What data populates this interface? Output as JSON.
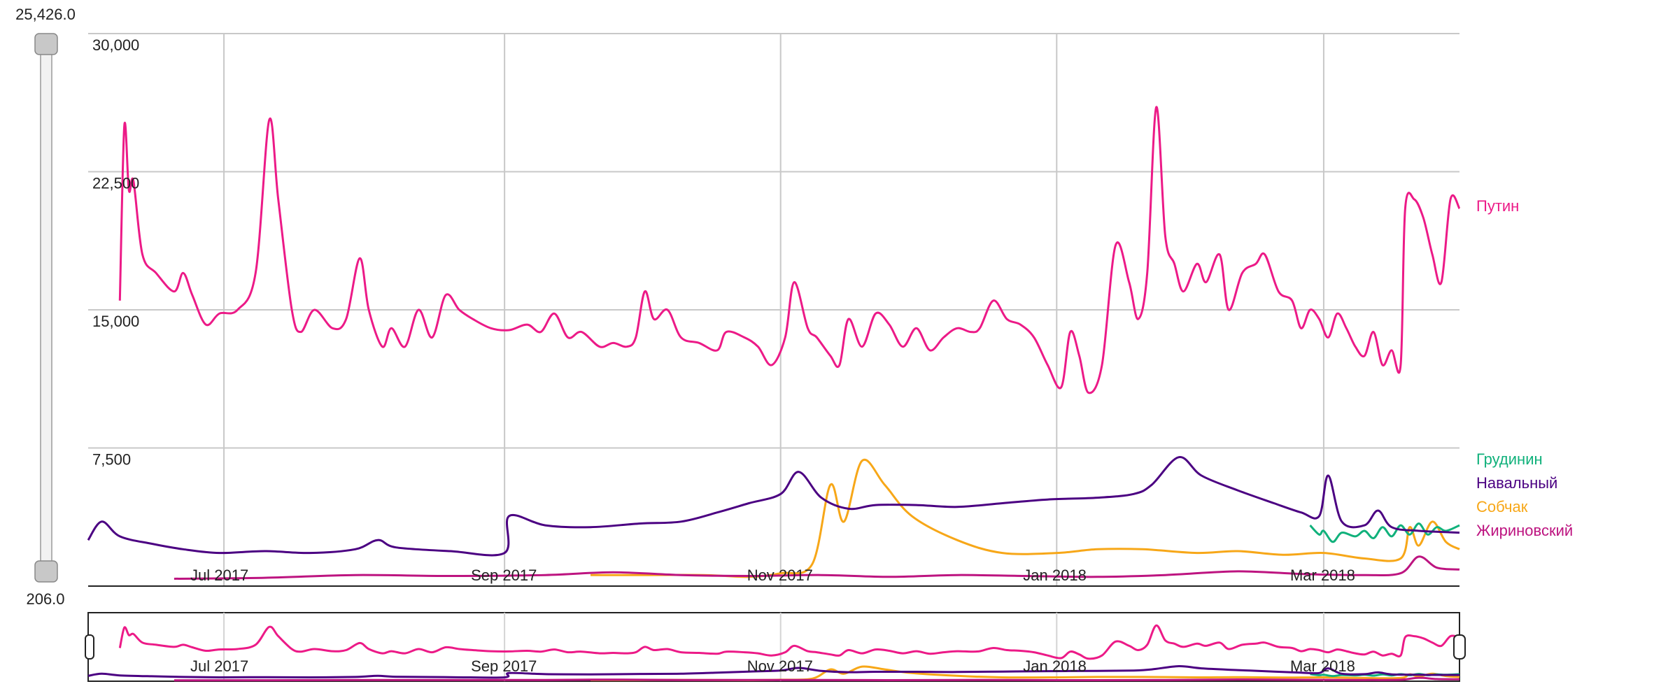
{
  "chart_data": {
    "type": "line",
    "y_range_slider": {
      "max_label": "25,426.0",
      "min_label": "206.0"
    },
    "ylim": [
      0,
      30000
    ],
    "y_ticks": [
      {
        "value": 30000,
        "label": "30,000"
      },
      {
        "value": 22500,
        "label": "22,500"
      },
      {
        "value": 15000,
        "label": "15,000"
      },
      {
        "value": 7500,
        "label": "7,500"
      }
    ],
    "x_range": [
      "2017-06-01",
      "2018-03-31"
    ],
    "x_ticks": [
      {
        "date": "2017-07-01",
        "label": "Jul 2017"
      },
      {
        "date": "2017-09-01",
        "label": "Sep 2017"
      },
      {
        "date": "2017-11-01",
        "label": "Nov 2017"
      },
      {
        "date": "2018-01-01",
        "label": "Jan 2018"
      },
      {
        "date": "2018-03-01",
        "label": "Mar 2018"
      }
    ],
    "grid": true,
    "legend_position": "right",
    "series": [
      {
        "name": "Путин",
        "color": "#ec1a87",
        "points": [
          [
            "2017-06-08",
            15500
          ],
          [
            "2017-06-09",
            25000
          ],
          [
            "2017-06-10",
            21500
          ],
          [
            "2017-06-11",
            22000
          ],
          [
            "2017-06-13",
            18000
          ],
          [
            "2017-06-16",
            17000
          ],
          [
            "2017-06-20",
            16000
          ],
          [
            "2017-06-22",
            17000
          ],
          [
            "2017-06-24",
            15800
          ],
          [
            "2017-06-27",
            14200
          ],
          [
            "2017-06-30",
            14800
          ],
          [
            "2017-07-04",
            15000
          ],
          [
            "2017-07-08",
            17000
          ],
          [
            "2017-07-11",
            25300
          ],
          [
            "2017-07-13",
            21000
          ],
          [
            "2017-07-16",
            15000
          ],
          [
            "2017-07-18",
            13800
          ],
          [
            "2017-07-21",
            15000
          ],
          [
            "2017-07-25",
            14000
          ],
          [
            "2017-07-28",
            14500
          ],
          [
            "2017-07-31",
            17800
          ],
          [
            "2017-08-02",
            15000
          ],
          [
            "2017-08-05",
            13000
          ],
          [
            "2017-08-07",
            14000
          ],
          [
            "2017-08-10",
            13000
          ],
          [
            "2017-08-13",
            15000
          ],
          [
            "2017-08-16",
            13500
          ],
          [
            "2017-08-19",
            15800
          ],
          [
            "2017-08-22",
            15000
          ],
          [
            "2017-08-25",
            14500
          ],
          [
            "2017-08-29",
            14000
          ],
          [
            "2017-09-02",
            13900
          ],
          [
            "2017-09-06",
            14200
          ],
          [
            "2017-09-09",
            13800
          ],
          [
            "2017-09-12",
            14800
          ],
          [
            "2017-09-15",
            13500
          ],
          [
            "2017-09-18",
            13800
          ],
          [
            "2017-09-22",
            13000
          ],
          [
            "2017-09-25",
            13200
          ],
          [
            "2017-09-28",
            13000
          ],
          [
            "2017-09-30",
            13500
          ],
          [
            "2017-10-02",
            16000
          ],
          [
            "2017-10-04",
            14500
          ],
          [
            "2017-10-07",
            15000
          ],
          [
            "2017-10-10",
            13500
          ],
          [
            "2017-10-14",
            13200
          ],
          [
            "2017-10-18",
            12800
          ],
          [
            "2017-10-20",
            13800
          ],
          [
            "2017-10-24",
            13500
          ],
          [
            "2017-10-27",
            13000
          ],
          [
            "2017-10-30",
            12000
          ],
          [
            "2017-11-02",
            13500
          ],
          [
            "2017-11-04",
            16500
          ],
          [
            "2017-11-07",
            14000
          ],
          [
            "2017-11-09",
            13500
          ],
          [
            "2017-11-12",
            12500
          ],
          [
            "2017-11-14",
            12000
          ],
          [
            "2017-11-16",
            14500
          ],
          [
            "2017-11-19",
            13000
          ],
          [
            "2017-11-22",
            14800
          ],
          [
            "2017-11-25",
            14200
          ],
          [
            "2017-11-28",
            13000
          ],
          [
            "2017-12-01",
            14000
          ],
          [
            "2017-12-04",
            12800
          ],
          [
            "2017-12-07",
            13500
          ],
          [
            "2017-12-10",
            14000
          ],
          [
            "2017-12-13",
            13800
          ],
          [
            "2017-12-15",
            14000
          ],
          [
            "2017-12-18",
            15500
          ],
          [
            "2017-12-21",
            14500
          ],
          [
            "2017-12-24",
            14200
          ],
          [
            "2017-12-27",
            13500
          ],
          [
            "2017-12-30",
            12000
          ],
          [
            "2018-01-02",
            10800
          ],
          [
            "2018-01-04",
            13800
          ],
          [
            "2018-01-06",
            12500
          ],
          [
            "2018-01-08",
            10500
          ],
          [
            "2018-01-11",
            12000
          ],
          [
            "2018-01-14",
            18500
          ],
          [
            "2018-01-17",
            16500
          ],
          [
            "2018-01-19",
            14500
          ],
          [
            "2018-01-21",
            17000
          ],
          [
            "2018-01-23",
            26000
          ],
          [
            "2018-01-25",
            19000
          ],
          [
            "2018-01-27",
            17500
          ],
          [
            "2018-01-29",
            16000
          ],
          [
            "2018-02-01",
            17500
          ],
          [
            "2018-02-03",
            16500
          ],
          [
            "2018-02-06",
            18000
          ],
          [
            "2018-02-08",
            15000
          ],
          [
            "2018-02-11",
            17000
          ],
          [
            "2018-02-14",
            17500
          ],
          [
            "2018-02-16",
            18000
          ],
          [
            "2018-02-19",
            16000
          ],
          [
            "2018-02-22",
            15500
          ],
          [
            "2018-02-24",
            14000
          ],
          [
            "2018-02-26",
            15000
          ],
          [
            "2018-02-28",
            14500
          ],
          [
            "2018-03-02",
            13500
          ],
          [
            "2018-03-04",
            14800
          ],
          [
            "2018-03-06",
            14000
          ],
          [
            "2018-03-08",
            13000
          ],
          [
            "2018-03-10",
            12500
          ],
          [
            "2018-03-12",
            13800
          ],
          [
            "2018-03-14",
            12000
          ],
          [
            "2018-03-16",
            12800
          ],
          [
            "2018-03-18",
            12000
          ],
          [
            "2018-03-19",
            20500
          ],
          [
            "2018-03-21",
            21000
          ],
          [
            "2018-03-23",
            20000
          ],
          [
            "2018-03-25",
            18000
          ],
          [
            "2018-03-27",
            16500
          ],
          [
            "2018-03-29",
            21000
          ],
          [
            "2018-03-31",
            20500
          ]
        ]
      },
      {
        "name": "Грудинин",
        "color": "#10b17b",
        "points": [
          [
            "2018-02-26",
            3300
          ],
          [
            "2018-02-28",
            2800
          ],
          [
            "2018-03-01",
            3000
          ],
          [
            "2018-03-03",
            2400
          ],
          [
            "2018-03-05",
            2900
          ],
          [
            "2018-03-08",
            2700
          ],
          [
            "2018-03-10",
            3000
          ],
          [
            "2018-03-12",
            2600
          ],
          [
            "2018-03-14",
            3200
          ],
          [
            "2018-03-16",
            2700
          ],
          [
            "2018-03-18",
            3300
          ],
          [
            "2018-03-20",
            2800
          ],
          [
            "2018-03-22",
            3400
          ],
          [
            "2018-03-24",
            2800
          ],
          [
            "2018-03-26",
            3200
          ],
          [
            "2018-03-28",
            3000
          ],
          [
            "2018-03-31",
            3300
          ]
        ]
      },
      {
        "name": "Навальный",
        "color": "#4b0082",
        "points": [
          [
            "2017-06-01",
            2500
          ],
          [
            "2017-06-04",
            3500
          ],
          [
            "2017-06-08",
            2700
          ],
          [
            "2017-06-15",
            2300
          ],
          [
            "2017-06-22",
            2000
          ],
          [
            "2017-06-30",
            1800
          ],
          [
            "2017-07-10",
            1900
          ],
          [
            "2017-07-20",
            1800
          ],
          [
            "2017-07-30",
            2000
          ],
          [
            "2017-08-04",
            2500
          ],
          [
            "2017-08-08",
            2100
          ],
          [
            "2017-08-20",
            1900
          ],
          [
            "2017-09-01",
            1800
          ],
          [
            "2017-09-02",
            3800
          ],
          [
            "2017-09-10",
            3300
          ],
          [
            "2017-09-20",
            3200
          ],
          [
            "2017-10-01",
            3400
          ],
          [
            "2017-10-10",
            3500
          ],
          [
            "2017-10-18",
            4000
          ],
          [
            "2017-10-25",
            4500
          ],
          [
            "2017-11-01",
            5000
          ],
          [
            "2017-11-05",
            6200
          ],
          [
            "2017-11-10",
            4800
          ],
          [
            "2017-11-16",
            4200
          ],
          [
            "2017-11-22",
            4400
          ],
          [
            "2017-12-01",
            4400
          ],
          [
            "2017-12-10",
            4300
          ],
          [
            "2017-12-20",
            4500
          ],
          [
            "2017-12-30",
            4700
          ],
          [
            "2018-01-10",
            4800
          ],
          [
            "2018-01-18",
            5000
          ],
          [
            "2018-01-22",
            5500
          ],
          [
            "2018-01-28",
            7000
          ],
          [
            "2018-02-02",
            6000
          ],
          [
            "2018-02-10",
            5200
          ],
          [
            "2018-02-18",
            4500
          ],
          [
            "2018-02-24",
            4000
          ],
          [
            "2018-02-28",
            3800
          ],
          [
            "2018-03-02",
            6000
          ],
          [
            "2018-03-05",
            3500
          ],
          [
            "2018-03-10",
            3300
          ],
          [
            "2018-03-13",
            4100
          ],
          [
            "2018-03-16",
            3200
          ],
          [
            "2018-03-22",
            3000
          ],
          [
            "2018-03-31",
            2900
          ]
        ]
      },
      {
        "name": "Собчак",
        "color": "#f7a718",
        "points": [
          [
            "2017-09-20",
            600
          ],
          [
            "2017-10-01",
            600
          ],
          [
            "2017-10-15",
            600
          ],
          [
            "2017-10-25",
            500
          ],
          [
            "2017-11-01",
            700
          ],
          [
            "2017-11-08",
            1200
          ],
          [
            "2017-11-12",
            5500
          ],
          [
            "2017-11-15",
            3500
          ],
          [
            "2017-11-19",
            6800
          ],
          [
            "2017-11-24",
            5500
          ],
          [
            "2017-11-30",
            3800
          ],
          [
            "2017-12-10",
            2500
          ],
          [
            "2017-12-20",
            1800
          ],
          [
            "2018-01-01",
            1800
          ],
          [
            "2018-01-10",
            2000
          ],
          [
            "2018-01-20",
            2000
          ],
          [
            "2018-02-01",
            1800
          ],
          [
            "2018-02-10",
            1900
          ],
          [
            "2018-02-20",
            1700
          ],
          [
            "2018-03-01",
            1800
          ],
          [
            "2018-03-10",
            1500
          ],
          [
            "2018-03-18",
            1500
          ],
          [
            "2018-03-20",
            3200
          ],
          [
            "2018-03-22",
            2200
          ],
          [
            "2018-03-25",
            3500
          ],
          [
            "2018-03-28",
            2400
          ],
          [
            "2018-03-31",
            2000
          ]
        ]
      },
      {
        "name": "Жириновский",
        "color": "#bd1480",
        "points": [
          [
            "2017-06-20",
            400
          ],
          [
            "2017-07-10",
            450
          ],
          [
            "2017-07-30",
            600
          ],
          [
            "2017-08-20",
            550
          ],
          [
            "2017-09-10",
            600
          ],
          [
            "2017-09-25",
            750
          ],
          [
            "2017-10-10",
            600
          ],
          [
            "2017-10-25",
            550
          ],
          [
            "2017-11-10",
            600
          ],
          [
            "2017-11-25",
            500
          ],
          [
            "2017-12-10",
            600
          ],
          [
            "2017-12-25",
            550
          ],
          [
            "2018-01-10",
            500
          ],
          [
            "2018-01-25",
            600
          ],
          [
            "2018-02-10",
            800
          ],
          [
            "2018-02-25",
            650
          ],
          [
            "2018-03-10",
            600
          ],
          [
            "2018-03-18",
            700
          ],
          [
            "2018-03-22",
            1600
          ],
          [
            "2018-03-26",
            1000
          ],
          [
            "2018-03-31",
            900
          ]
        ]
      }
    ]
  }
}
